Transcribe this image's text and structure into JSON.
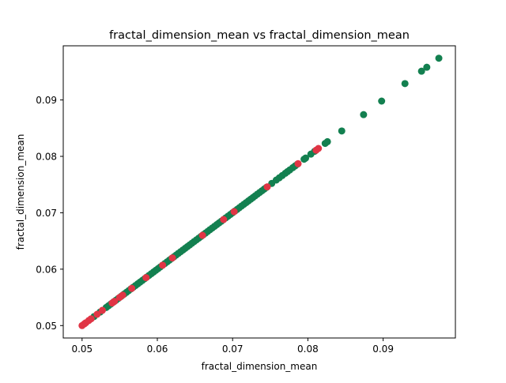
{
  "chart_data": {
    "type": "scatter",
    "title": "fractal_dimension_mean vs fractal_dimension_mean",
    "xlabel": "fractal_dimension_mean",
    "ylabel": "fractal_dimension_mean",
    "xlim": [
      0.0475,
      0.0996
    ],
    "ylim": [
      0.0478,
      0.0996
    ],
    "xticks": [
      0.05,
      0.06,
      0.07,
      0.08,
      0.09
    ],
    "yticks": [
      0.05,
      0.06,
      0.07,
      0.08,
      0.09
    ],
    "xtick_labels": [
      "0.05",
      "0.06",
      "0.07",
      "0.08",
      "0.09"
    ],
    "ytick_labels": [
      "0.05",
      "0.06",
      "0.07",
      "0.08",
      "0.09"
    ],
    "grid": false,
    "legend": "none",
    "colors": {
      "green": "#138050",
      "red": "#E03545"
    },
    "series": [
      {
        "color": "#138050",
        "x": [
          0.0516,
          0.0524,
          0.0532,
          0.0535,
          0.0538,
          0.0542,
          0.0545,
          0.0548,
          0.0552,
          0.0556,
          0.0559,
          0.0562,
          0.0565,
          0.0568,
          0.0571,
          0.0574,
          0.0577,
          0.058,
          0.0583,
          0.0586,
          0.0589,
          0.0592,
          0.0595,
          0.0598,
          0.0601,
          0.0604,
          0.0607,
          0.061,
          0.0613,
          0.0616,
          0.0619,
          0.0622,
          0.0625,
          0.0628,
          0.0631,
          0.0634,
          0.0637,
          0.064,
          0.0643,
          0.0646,
          0.0649,
          0.0652,
          0.0655,
          0.0658,
          0.0661,
          0.0664,
          0.0667,
          0.067,
          0.0673,
          0.0676,
          0.0679,
          0.0682,
          0.0685,
          0.0688,
          0.0691,
          0.0694,
          0.0697,
          0.07,
          0.0703,
          0.0706,
          0.0709,
          0.0712,
          0.0715,
          0.0718,
          0.0721,
          0.0724,
          0.0727,
          0.073,
          0.0733,
          0.0736,
          0.0739,
          0.0742,
          0.0745,
          0.0752,
          0.0758,
          0.0762,
          0.0766,
          0.077,
          0.0773,
          0.0776,
          0.078,
          0.0783,
          0.0786,
          0.0795,
          0.0797,
          0.0804,
          0.0809,
          0.0823,
          0.0826,
          0.0845,
          0.0874,
          0.0898,
          0.0929,
          0.0951,
          0.0958,
          0.0974
        ],
        "y": [
          0.0516,
          0.0524,
          0.0532,
          0.0535,
          0.0538,
          0.0542,
          0.0545,
          0.0548,
          0.0552,
          0.0556,
          0.0559,
          0.0562,
          0.0565,
          0.0568,
          0.0571,
          0.0574,
          0.0577,
          0.058,
          0.0583,
          0.0586,
          0.0589,
          0.0592,
          0.0595,
          0.0598,
          0.0601,
          0.0604,
          0.0607,
          0.061,
          0.0613,
          0.0616,
          0.0619,
          0.0622,
          0.0625,
          0.0628,
          0.0631,
          0.0634,
          0.0637,
          0.064,
          0.0643,
          0.0646,
          0.0649,
          0.0652,
          0.0655,
          0.0658,
          0.0661,
          0.0664,
          0.0667,
          0.067,
          0.0673,
          0.0676,
          0.0679,
          0.0682,
          0.0685,
          0.0688,
          0.0691,
          0.0694,
          0.0697,
          0.07,
          0.0703,
          0.0706,
          0.0709,
          0.0712,
          0.0715,
          0.0718,
          0.0721,
          0.0724,
          0.0727,
          0.073,
          0.0733,
          0.0736,
          0.0739,
          0.0742,
          0.0745,
          0.0752,
          0.0758,
          0.0762,
          0.0766,
          0.077,
          0.0773,
          0.0776,
          0.078,
          0.0783,
          0.0786,
          0.0795,
          0.0797,
          0.0804,
          0.0809,
          0.0823,
          0.0826,
          0.0845,
          0.0874,
          0.0898,
          0.0929,
          0.0951,
          0.0958,
          0.0974
        ]
      },
      {
        "color": "#E03545",
        "x": [
          0.05,
          0.0503,
          0.0505,
          0.0509,
          0.0512,
          0.052,
          0.0527,
          0.054,
          0.0543,
          0.055,
          0.0554,
          0.0566,
          0.0585,
          0.0607,
          0.062,
          0.066,
          0.0688,
          0.0702,
          0.0746,
          0.0787,
          0.0811,
          0.0814
        ],
        "y": [
          0.05,
          0.0503,
          0.0505,
          0.0509,
          0.0512,
          0.052,
          0.0527,
          0.054,
          0.0543,
          0.055,
          0.0554,
          0.0566,
          0.0585,
          0.0607,
          0.062,
          0.066,
          0.0688,
          0.0702,
          0.0746,
          0.0787,
          0.0811,
          0.0814
        ]
      }
    ]
  }
}
